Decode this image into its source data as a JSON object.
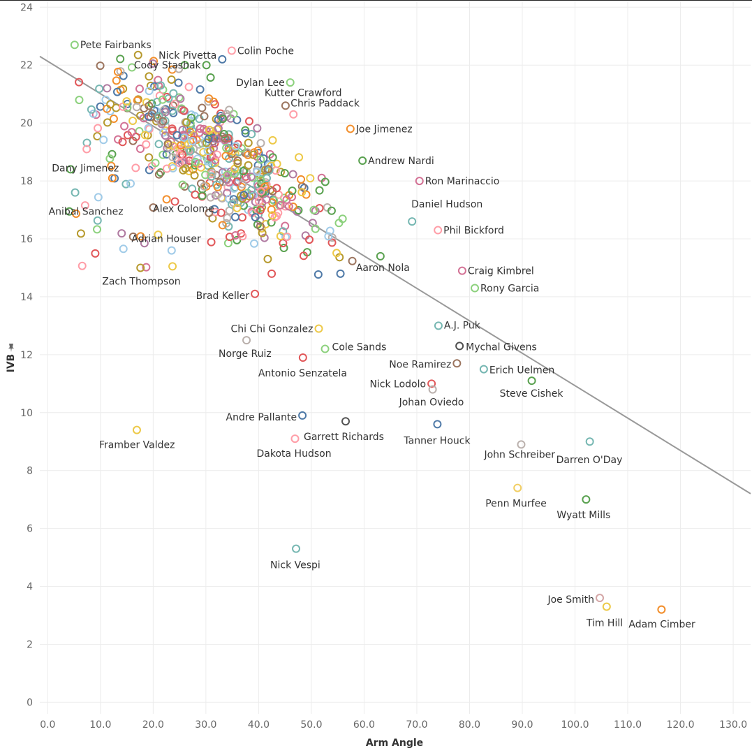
{
  "chart_data": {
    "type": "scatter",
    "title": "",
    "xlabel": "Arm Angle",
    "ylabel": "IVB",
    "ylabel_icon": "pin-icon",
    "xlim": [
      -1.5,
      133.3
    ],
    "ylim": [
      -0.4,
      24.2
    ],
    "x_ticks": [
      "0.0",
      "10.0",
      "20.0",
      "30.0",
      "40.0",
      "50.0",
      "60.0",
      "70.0",
      "80.0",
      "90.0",
      "100.0",
      "110.0",
      "120.0",
      "130.0"
    ],
    "x_tick_values": [
      0,
      10,
      20,
      30,
      40,
      50,
      60,
      70,
      80,
      90,
      100,
      110,
      120,
      130
    ],
    "y_ticks": [
      "0",
      "2",
      "4",
      "6",
      "8",
      "10",
      "12",
      "14",
      "16",
      "18",
      "20",
      "22",
      "24"
    ],
    "y_tick_values": [
      0,
      2,
      4,
      6,
      8,
      10,
      12,
      14,
      16,
      18,
      20,
      22,
      24
    ],
    "grid": true,
    "trend_line": {
      "x": [
        -1.5,
        133.3
      ],
      "y": [
        22.3,
        7.2
      ]
    },
    "palette": [
      "#4e79a7",
      "#f28e2b",
      "#e15759",
      "#76b7b2",
      "#59a14f",
      "#edc948",
      "#b07aa1",
      "#ff9da7",
      "#9c755f",
      "#bab0ac",
      "#8cd17d",
      "#a0cbe8",
      "#d37295",
      "#b6992d"
    ],
    "labeled_points": [
      {
        "name": "Pete Fairbanks",
        "x": 5.1,
        "y": 22.7,
        "color": "#8cd17d"
      },
      {
        "name": "Nick Pivetta",
        "x": 33.1,
        "y": 22.2,
        "color": "#4e79a7"
      },
      {
        "name": "Colin Poche",
        "x": 34.9,
        "y": 22.5,
        "color": "#ff9da7"
      },
      {
        "name": "Cody Stashak",
        "x": 30.1,
        "y": 22.0,
        "color": "#59a14f"
      },
      {
        "name": "Dylan Lee",
        "x": 46.0,
        "y": 21.4,
        "color": "#8cd17d"
      },
      {
        "name": "Kutter Crawford",
        "x": 45.1,
        "y": 20.6,
        "color": "#9c755f"
      },
      {
        "name": "Chris Paddack",
        "x": 46.6,
        "y": 20.3,
        "color": "#ff9da7"
      },
      {
        "name": "Joe Jimenez",
        "x": 57.4,
        "y": 19.8,
        "color": "#f28e2b"
      },
      {
        "name": "Dany Jimenez",
        "x": 7.4,
        "y": 19.1,
        "color": "#ff9da7"
      },
      {
        "name": "Andrew Nardi",
        "x": 59.7,
        "y": 18.7,
        "color": "#59a14f"
      },
      {
        "name": "Ron Marinaccio",
        "x": 70.5,
        "y": 18.0,
        "color": "#d37295"
      },
      {
        "name": "Anibal Sanchez",
        "x": 5.2,
        "y": 17.6,
        "color": "#76b7b2"
      },
      {
        "name": "Alex Colome",
        "x": 32.9,
        "y": 16.9,
        "color": "#e15759"
      },
      {
        "name": "Daniel Hudson",
        "x": 69.1,
        "y": 16.6,
        "color": "#76b7b2"
      },
      {
        "name": "Phil Bickford",
        "x": 74.0,
        "y": 16.3,
        "color": "#ff9da7"
      },
      {
        "name": "Adrian Houser",
        "x": 23.5,
        "y": 15.6,
        "color": "#a0cbe8"
      },
      {
        "name": "Aaron Nola",
        "x": 63.1,
        "y": 15.4,
        "color": "#59a14f"
      },
      {
        "name": "Craig Kimbrel",
        "x": 78.6,
        "y": 14.9,
        "color": "#d37295"
      },
      {
        "name": "Rony Garcia",
        "x": 81.0,
        "y": 14.3,
        "color": "#8cd17d"
      },
      {
        "name": "Zach Thompson",
        "x": 17.6,
        "y": 15.0,
        "color": "#b6992d"
      },
      {
        "name": "Brad Keller",
        "x": 39.3,
        "y": 14.1,
        "color": "#e15759"
      },
      {
        "name": "A.J. Puk",
        "x": 74.1,
        "y": 13.0,
        "color": "#76b7b2"
      },
      {
        "name": "Chi Chi Gonzalez",
        "x": 51.4,
        "y": 12.9,
        "color": "#edc948"
      },
      {
        "name": "Mychal Givens",
        "x": 78.1,
        "y": 12.3,
        "color": "#4e4e4e"
      },
      {
        "name": "Cole Sands",
        "x": 52.6,
        "y": 12.2,
        "color": "#8cd17d"
      },
      {
        "name": "Norge Ruiz",
        "x": 37.7,
        "y": 12.5,
        "color": "#bab0ac"
      },
      {
        "name": "Noe Ramirez",
        "x": 77.6,
        "y": 11.7,
        "color": "#9c755f"
      },
      {
        "name": "Erich Uelmen",
        "x": 82.7,
        "y": 11.5,
        "color": "#76b7b2"
      },
      {
        "name": "Antonio Senzatela",
        "x": 48.4,
        "y": 11.9,
        "color": "#e15759"
      },
      {
        "name": "Nick Lodolo",
        "x": 72.8,
        "y": 11.0,
        "color": "#e15759"
      },
      {
        "name": "Steve Cishek",
        "x": 91.8,
        "y": 11.1,
        "color": "#59a14f"
      },
      {
        "name": "Johan Oviedo",
        "x": 73.0,
        "y": 10.8,
        "color": "#bab0ac"
      },
      {
        "name": "Andre Pallante",
        "x": 48.3,
        "y": 9.9,
        "color": "#4e79a7"
      },
      {
        "name": "Garrett Richards",
        "x": 56.5,
        "y": 9.7,
        "color": "#555555"
      },
      {
        "name": "Framber Valdez",
        "x": 16.9,
        "y": 9.4,
        "color": "#edc948"
      },
      {
        "name": "Tanner Houck",
        "x": 73.9,
        "y": 9.6,
        "color": "#4e79a7"
      },
      {
        "name": "Dakota Hudson",
        "x": 46.9,
        "y": 9.1,
        "color": "#ff9da7"
      },
      {
        "name": "Darren O'Day",
        "x": 102.8,
        "y": 9.0,
        "color": "#76b7b2"
      },
      {
        "name": "John Schreiber",
        "x": 89.8,
        "y": 8.9,
        "color": "#bab0ac"
      },
      {
        "name": "Penn Murfee",
        "x": 89.1,
        "y": 7.4,
        "color": "#f1ce63"
      },
      {
        "name": "Wyatt Mills",
        "x": 102.1,
        "y": 7.0,
        "color": "#59a14f"
      },
      {
        "name": "Nick Vespi",
        "x": 47.1,
        "y": 5.3,
        "color": "#76b7b2"
      },
      {
        "name": "Joe Smith",
        "x": 104.7,
        "y": 3.6,
        "color": "#d4a6a6"
      },
      {
        "name": "Tim Hill",
        "x": 106.0,
        "y": 3.3,
        "color": "#edc948"
      },
      {
        "name": "Adam Cimber",
        "x": 116.4,
        "y": 3.2,
        "color": "#f28e2b"
      }
    ]
  }
}
